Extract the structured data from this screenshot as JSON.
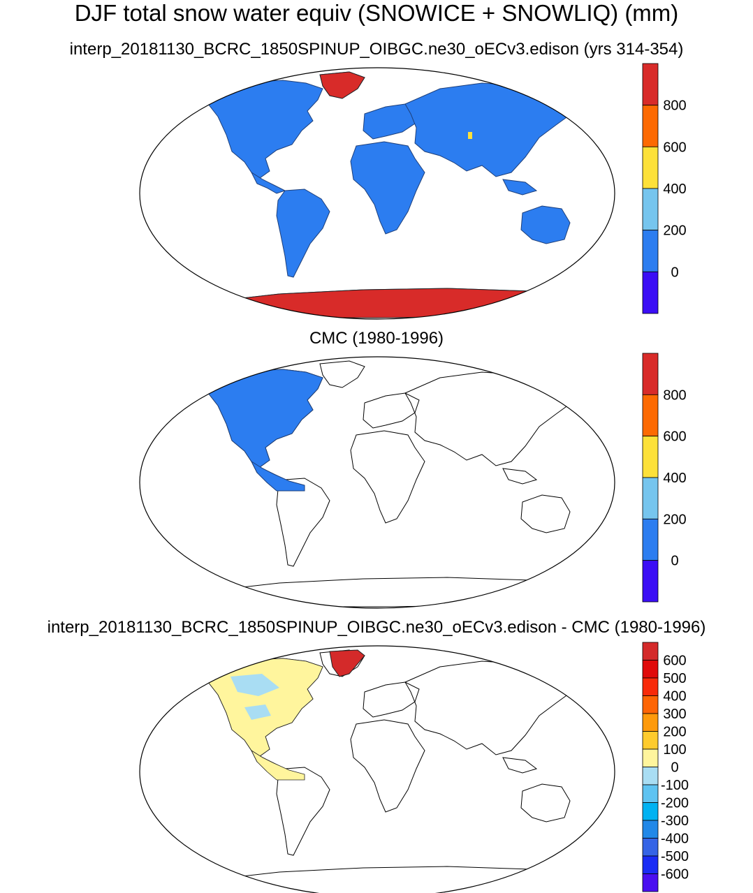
{
  "title": "DJF total snow water equiv (SNOWICE + SNOWLIQ) (mm)",
  "panels": [
    {
      "title": "interp_20181130_BCRC_1850SPINUP_OIBGC.ne30_oECv3.edison (yrs 314-354)",
      "colorbar": {
        "colors": [
          "#3b0ef5",
          "#2c7df0",
          "#76c5ee",
          "#fde139",
          "#fd6a02",
          "#d82b29"
        ],
        "labels": [
          "0",
          "200",
          "400",
          "600",
          "800"
        ]
      }
    },
    {
      "title": "CMC (1980-1996)",
      "colorbar": {
        "colors": [
          "#3b0ef5",
          "#2c7df0",
          "#76c5ee",
          "#fde139",
          "#fd6a02",
          "#d82b29"
        ],
        "labels": [
          "0",
          "200",
          "400",
          "600",
          "800"
        ]
      }
    },
    {
      "title": "interp_20181130_BCRC_1850SPINUP_OIBGC.ne30_oECv3.edison - CMC (1980-1996)",
      "colorbar": {
        "colors": [
          "#4a0ff0",
          "#1a2cf5",
          "#3564e6",
          "#2188e8",
          "#00b2f2",
          "#5fc3f1",
          "#a9ddf3",
          "#fff59d",
          "#fecb2d",
          "#fe9a0b",
          "#fe6505",
          "#f82a0a",
          "#e00a0a",
          "#d42a2a"
        ],
        "labels": [
          "-600",
          "-500",
          "-400",
          "-300",
          "-200",
          "-100",
          "0",
          "100",
          "200",
          "300",
          "400",
          "500",
          "600"
        ]
      }
    }
  ],
  "colors": {
    "land_fill": "#2c7df0",
    "ice_fill": "#d82b29",
    "diff_fill": "#fff59d",
    "diff_neg": "#a9ddf3"
  }
}
